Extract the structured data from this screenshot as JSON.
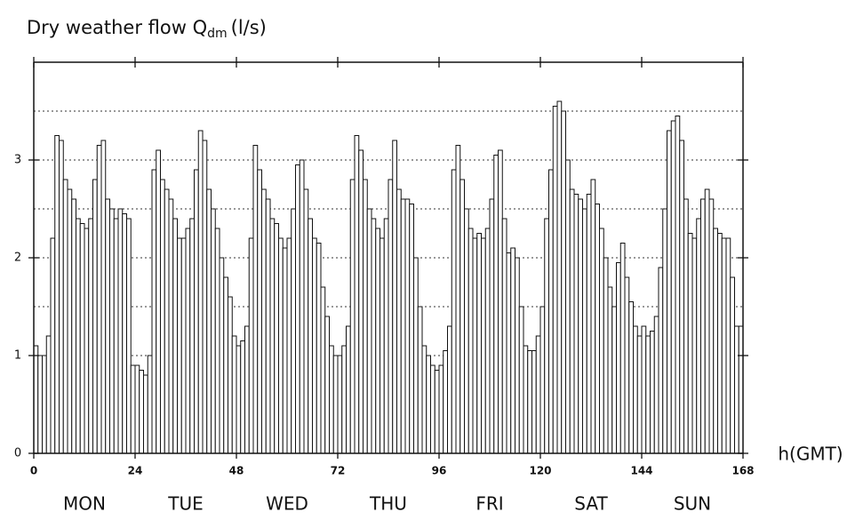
{
  "chart_data": {
    "type": "histogram",
    "title": "Dry weather flow Q",
    "title_subscript": "dm",
    "title_unit": "(l/s)",
    "x_label": "h(GMT)",
    "day_labels": [
      "MON",
      "TUE",
      "WED",
      "THU",
      "FRI",
      "SAT",
      "SUN"
    ],
    "bin_width": 1,
    "xlim": [
      0,
      168
    ],
    "xticks": [
      0,
      24,
      48,
      72,
      96,
      120,
      144,
      168
    ],
    "ylim": [
      0,
      4
    ],
    "yticks": [
      0,
      1,
      2,
      3
    ],
    "ygrid": [
      0.5,
      1,
      1.5,
      2,
      2.5,
      3,
      3.5
    ],
    "color": "#ffffff",
    "values": [
      1.1,
      1.0,
      1.0,
      1.2,
      2.2,
      3.25,
      3.2,
      2.8,
      2.7,
      2.6,
      2.4,
      2.35,
      2.3,
      2.4,
      2.8,
      3.15,
      3.2,
      2.6,
      2.5,
      2.4,
      2.5,
      2.45,
      2.4,
      0.9,
      0.9,
      0.85,
      0.8,
      1.0,
      2.9,
      3.1,
      2.8,
      2.7,
      2.6,
      2.4,
      2.2,
      2.2,
      2.3,
      2.4,
      2.9,
      3.3,
      3.2,
      2.7,
      2.5,
      2.3,
      2.0,
      1.8,
      1.6,
      1.2,
      1.1,
      1.15,
      1.3,
      2.2,
      3.15,
      2.9,
      2.7,
      2.6,
      2.4,
      2.35,
      2.2,
      2.1,
      2.2,
      2.5,
      2.95,
      3.0,
      2.7,
      2.4,
      2.2,
      2.15,
      1.7,
      1.4,
      1.1,
      1.0,
      1.0,
      1.1,
      1.3,
      2.8,
      3.25,
      3.1,
      2.8,
      2.5,
      2.4,
      2.3,
      2.2,
      2.4,
      2.8,
      3.2,
      2.7,
      2.6,
      2.6,
      2.55,
      2.0,
      1.5,
      1.1,
      1.0,
      0.9,
      0.85,
      0.9,
      1.05,
      1.3,
      2.9,
      3.15,
      2.8,
      2.5,
      2.3,
      2.2,
      2.25,
      2.2,
      2.3,
      2.6,
      3.05,
      3.1,
      2.4,
      2.05,
      2.1,
      2.0,
      1.5,
      1.1,
      1.05,
      1.05,
      1.2,
      1.5,
      2.4,
      2.9,
      3.55,
      3.6,
      3.5,
      3.0,
      2.7,
      2.65,
      2.6,
      2.5,
      2.65,
      2.8,
      2.55,
      2.3,
      2.0,
      1.7,
      1.5,
      1.95,
      2.15,
      1.8,
      1.55,
      1.3,
      1.2,
      1.3,
      1.2,
      1.25,
      1.4,
      1.9,
      2.5,
      3.3,
      3.4,
      3.45,
      3.2,
      2.6,
      2.25,
      2.2,
      2.4,
      2.6,
      2.7,
      2.6,
      2.3,
      2.25,
      2.2,
      2.2,
      1.8,
      1.3,
      1.3
    ]
  }
}
